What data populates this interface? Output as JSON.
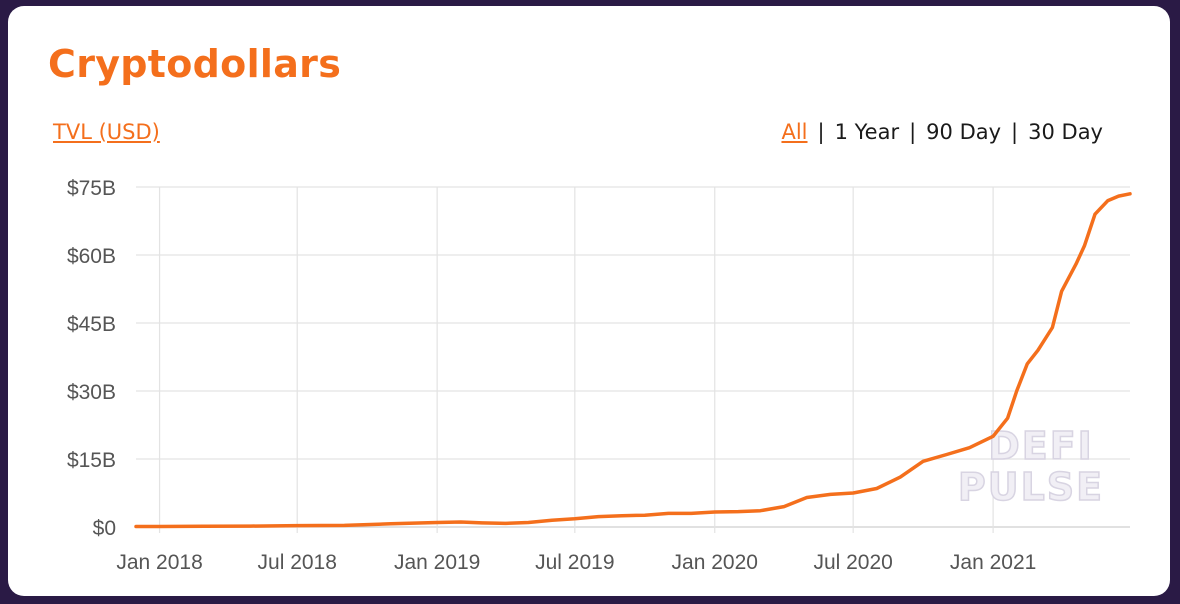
{
  "card": {
    "title": "Cryptodollars",
    "metric_label": "TVL (USD)",
    "ranges": [
      "All",
      "1 Year",
      "90 Day",
      "30 Day"
    ],
    "active_range": "All",
    "watermark": [
      "DEFI",
      "PULSE"
    ]
  },
  "colors": {
    "accent": "#f46f1c",
    "background": "#2a1a45",
    "grid": "#e3e3e3"
  },
  "chart_data": {
    "type": "line",
    "title": "",
    "xlabel": "",
    "ylabel": "",
    "x_range": [
      "2017-12-01",
      "2021-06-30"
    ],
    "ylim": [
      0,
      75
    ],
    "y_ticks": [
      0,
      15,
      30,
      45,
      60,
      75
    ],
    "y_tick_labels": [
      "$0",
      "$15B",
      "$30B",
      "$45B",
      "$60B",
      "$75B"
    ],
    "x_ticks": [
      "2018-01-01",
      "2018-07-01",
      "2019-01-01",
      "2019-07-01",
      "2020-01-01",
      "2020-07-01",
      "2021-01-01"
    ],
    "x_tick_labels": [
      "Jan 2018",
      "Jul 2018",
      "Jan 2019",
      "Jul 2019",
      "Jan 2020",
      "Jul 2020",
      "Jan 2021"
    ],
    "grid": true,
    "unit": "USD billions",
    "series": [
      {
        "color": "#f46f1c",
        "points": [
          [
            "2017-12-01",
            0.1
          ],
          [
            "2018-01-01",
            0.1
          ],
          [
            "2018-03-01",
            0.15
          ],
          [
            "2018-05-01",
            0.2
          ],
          [
            "2018-07-01",
            0.3
          ],
          [
            "2018-09-01",
            0.35
          ],
          [
            "2018-11-01",
            0.7
          ],
          [
            "2019-01-01",
            1.0
          ],
          [
            "2019-02-01",
            1.1
          ],
          [
            "2019-03-01",
            0.9
          ],
          [
            "2019-04-01",
            0.8
          ],
          [
            "2019-05-01",
            1.0
          ],
          [
            "2019-06-01",
            1.5
          ],
          [
            "2019-07-01",
            1.8
          ],
          [
            "2019-08-01",
            2.3
          ],
          [
            "2019-09-01",
            2.5
          ],
          [
            "2019-10-01",
            2.6
          ],
          [
            "2019-11-01",
            3.0
          ],
          [
            "2019-12-01",
            3.0
          ],
          [
            "2020-01-01",
            3.3
          ],
          [
            "2020-02-01",
            3.4
          ],
          [
            "2020-03-01",
            3.6
          ],
          [
            "2020-04-01",
            4.5
          ],
          [
            "2020-05-01",
            6.5
          ],
          [
            "2020-06-01",
            7.2
          ],
          [
            "2020-07-01",
            7.5
          ],
          [
            "2020-08-01",
            8.5
          ],
          [
            "2020-09-01",
            11.0
          ],
          [
            "2020-10-01",
            14.5
          ],
          [
            "2020-11-01",
            16.0
          ],
          [
            "2020-12-01",
            17.5
          ],
          [
            "2021-01-01",
            20.0
          ],
          [
            "2021-01-20",
            24.0
          ],
          [
            "2021-02-01",
            30.0
          ],
          [
            "2021-02-15",
            36.0
          ],
          [
            "2021-03-01",
            39.0
          ],
          [
            "2021-03-20",
            44.0
          ],
          [
            "2021-04-01",
            52.0
          ],
          [
            "2021-04-20",
            58.0
          ],
          [
            "2021-05-01",
            62.0
          ],
          [
            "2021-05-15",
            69.0
          ],
          [
            "2021-06-01",
            72.0
          ],
          [
            "2021-06-15",
            73.0
          ],
          [
            "2021-06-30",
            73.5
          ]
        ]
      }
    ]
  }
}
